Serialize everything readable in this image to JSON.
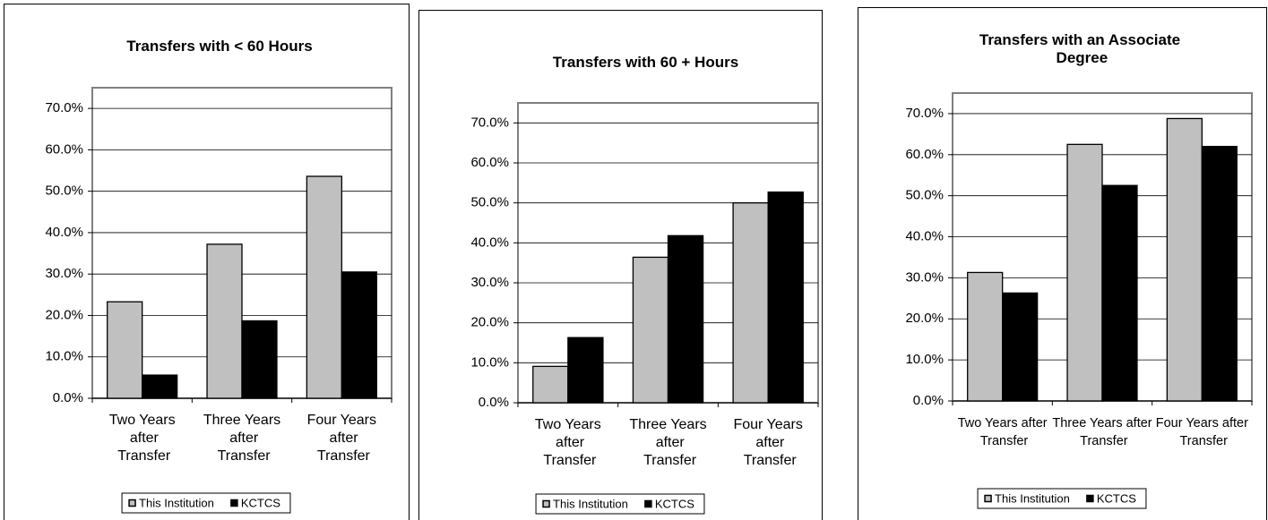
{
  "chart_data": [
    {
      "type": "bar",
      "title": "Transfers with < 60 Hours",
      "categories": [
        "Two Years after Transfer",
        "Three Years after Transfer",
        "Four Years after Transfer"
      ],
      "series": [
        {
          "name": "This Institution",
          "color": "#c0c0c0",
          "values": [
            23.3,
            37.2,
            53.6
          ]
        },
        {
          "name": "KCTCS",
          "color": "#000000",
          "values": [
            5.6,
            18.7,
            30.5
          ]
        }
      ],
      "ylim": [
        0,
        75
      ],
      "yticks": [
        {
          "value": 0,
          "label": "0.0%"
        },
        {
          "value": 10,
          "label": "10.0%"
        },
        {
          "value": 20,
          "label": "20.0%"
        },
        {
          "value": 30,
          "label": "30.0%"
        },
        {
          "value": 40,
          "label": "40.0%"
        },
        {
          "value": 50,
          "label": "50.0%"
        },
        {
          "value": 60,
          "label": "60.0%"
        },
        {
          "value": 70,
          "label": "70.0%"
        }
      ],
      "grid": true,
      "legend": "bottom"
    },
    {
      "type": "bar",
      "title": "Transfers with 60 + Hours",
      "categories": [
        "Two Years after Transfer",
        "Three Years after Transfer",
        "Four Years after Transfer"
      ],
      "series": [
        {
          "name": "This Institution",
          "color": "#c0c0c0",
          "values": [
            9.1,
            36.4,
            50.0
          ]
        },
        {
          "name": "KCTCS",
          "color": "#000000",
          "values": [
            16.3,
            41.8,
            52.7
          ]
        }
      ],
      "ylim": [
        0,
        75
      ],
      "yticks": [
        {
          "value": 0,
          "label": "0.0%"
        },
        {
          "value": 10,
          "label": "10.0%"
        },
        {
          "value": 20,
          "label": "20.0%"
        },
        {
          "value": 30,
          "label": "30.0%"
        },
        {
          "value": 40,
          "label": "40.0%"
        },
        {
          "value": 50,
          "label": "50.0%"
        },
        {
          "value": 60,
          "label": "60.0%"
        },
        {
          "value": 70,
          "label": "70.0%"
        }
      ],
      "grid": true,
      "legend": "bottom"
    },
    {
      "type": "bar",
      "title": "Transfers with an Associate Degree",
      "categories": [
        "Two Years after Transfer",
        "Three Years after Transfer",
        "Four Years after Transfer"
      ],
      "series": [
        {
          "name": "This Institution",
          "color": "#c0c0c0",
          "values": [
            31.3,
            62.5,
            68.8
          ]
        },
        {
          "name": "KCTCS",
          "color": "#000000",
          "values": [
            26.3,
            52.5,
            62.0
          ]
        }
      ],
      "ylim": [
        0,
        75
      ],
      "yticks": [
        {
          "value": 0,
          "label": "0.0%"
        },
        {
          "value": 10,
          "label": "10.0%"
        },
        {
          "value": 20,
          "label": "20.0%"
        },
        {
          "value": 30,
          "label": "30.0%"
        },
        {
          "value": 40,
          "label": "40.0%"
        },
        {
          "value": 50,
          "label": "50.0%"
        },
        {
          "value": 60,
          "label": "60.0%"
        },
        {
          "value": 70,
          "label": "70.0%"
        }
      ],
      "grid": true,
      "legend": "bottom"
    }
  ]
}
